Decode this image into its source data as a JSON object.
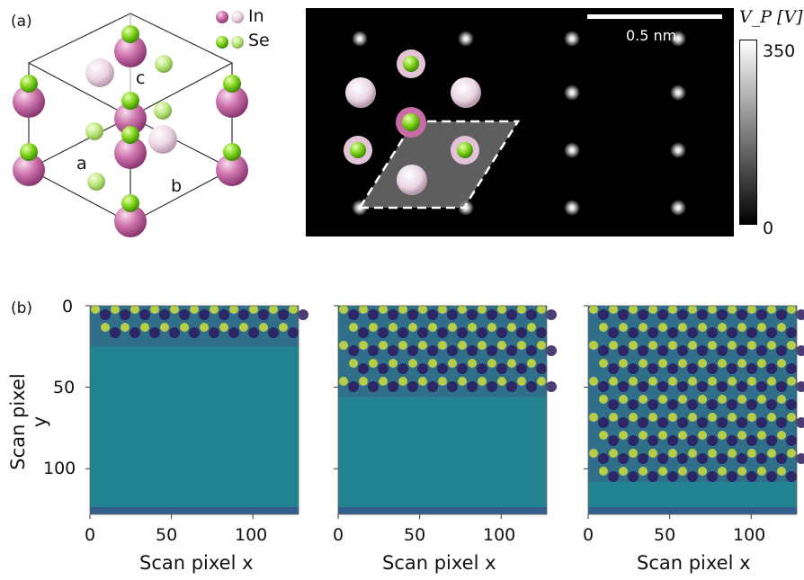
{
  "panel_a": {
    "label": "(a)",
    "legend": {
      "in_label": "In",
      "se_label": "Se"
    },
    "axes": {
      "a": "a",
      "b": "b",
      "c": "c"
    },
    "stem_image": {
      "scale_bar_label": "0.5 nm",
      "colorbar_title": "V_P [V]",
      "colorbar_max": "350",
      "colorbar_min": "0"
    }
  },
  "panel_b": {
    "label": "(b)",
    "ylabel": "Scan pixel y",
    "xlabel": "Scan pixel x",
    "y_ticks": [
      "0",
      "50",
      "100"
    ],
    "x_ticks": [
      "0",
      "50",
      "100"
    ],
    "maps": [
      {
        "scan_progress_rows": 25
      },
      {
        "scan_progress_rows": 56
      },
      {
        "scan_progress_rows": 108
      }
    ]
  },
  "colors": {
    "in_atom": "#c86ba6",
    "se_atom": "#7fd31a",
    "viridis_low": "#2b1a5e",
    "viridis_mid": "#23828f",
    "viridis_high": "#dbe535"
  }
}
